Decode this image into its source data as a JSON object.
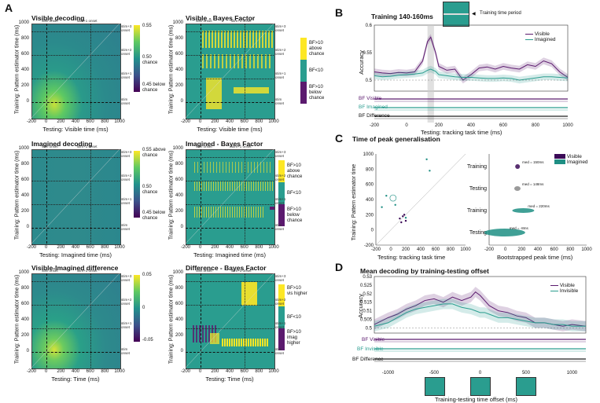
{
  "panels": {
    "A": {
      "label": "A"
    },
    "B": {
      "label": "B"
    },
    "C": {
      "label": "C"
    },
    "D": {
      "label": "D"
    }
  },
  "panelA": {
    "titles": [
      "Visible decoding",
      "Visible - Bayes Factor",
      "Imagined decoding",
      "Imagined - Bayes Factor",
      "Visible-Imagined difference",
      "Difference - Bayes Factor"
    ],
    "ylabel": "Training: Pattern estimator time (ms)",
    "xlabels": [
      "Testing: Visible time (ms)",
      "Testing: Visible time (ms)",
      "Testing: Imagined time (ms)",
      "Testing: Imagined time (ms)",
      "Testing: Time (ms)",
      "Testing: Time (ms)"
    ],
    "xticks": [
      "-200",
      "0",
      "200",
      "400",
      "600",
      "800",
      "1000"
    ],
    "yticks": [
      "1000",
      "800",
      "600",
      "400",
      "200",
      "0"
    ],
    "onset_top": [
      "stim onset",
      "stim+1 onset"
    ],
    "onset_side": [
      "stim+3 onset",
      "stim+2 onset",
      "stim+1 onset",
      "stim onset"
    ],
    "colorbar_vis": [
      "0.55",
      "0.50 chance",
      "0.45 below chance"
    ],
    "colorbar_img": [
      "0.55 above chance",
      "0.50 chance",
      "0.45 below chance"
    ],
    "colorbar_diff": [
      "0.05",
      "0",
      "-0.05"
    ],
    "bf_legend": [
      "BF>10 above chance",
      "BF<10",
      "BF>10 below chance"
    ],
    "bf_legend_diff": [
      "BF>10 vis higher",
      "BF<10",
      "BF>10 imag higher"
    ]
  },
  "panelB": {
    "title": "Training 140-160ms",
    "inset_label": "Training time period",
    "ylabel": "Accuracy",
    "xlabel": "Testing: tracking task time (ms)",
    "legend": [
      "Visible",
      "Imagined"
    ],
    "bf_rows": [
      "BF Visible",
      "BF Imagined",
      "BF Difference"
    ],
    "colors": {
      "visible": "#5b1a6e",
      "imagined": "#2a9d8f"
    },
    "chart_data": {
      "type": "line",
      "x": [
        -200,
        -150,
        -100,
        -50,
        0,
        50,
        100,
        130,
        150,
        180,
        200,
        250,
        300,
        350,
        400,
        450,
        500,
        550,
        600,
        650,
        700,
        750,
        800,
        850,
        900,
        950,
        1000
      ],
      "series": [
        {
          "name": "Visible",
          "values": [
            0.515,
            0.513,
            0.512,
            0.514,
            0.513,
            0.515,
            0.535,
            0.57,
            0.578,
            0.55,
            0.525,
            0.518,
            0.52,
            0.5,
            0.51,
            0.522,
            0.524,
            0.52,
            0.525,
            0.522,
            0.52,
            0.528,
            0.525,
            0.535,
            0.53,
            0.515,
            0.505
          ]
        },
        {
          "name": "Imagined",
          "values": [
            0.508,
            0.506,
            0.507,
            0.509,
            0.51,
            0.511,
            0.513,
            0.518,
            0.52,
            0.516,
            0.51,
            0.508,
            0.506,
            0.505,
            0.505,
            0.504,
            0.503,
            0.503,
            0.504,
            0.503,
            0.5,
            0.502,
            0.504,
            0.506,
            0.506,
            0.505,
            0.504
          ]
        }
      ],
      "xticks": [
        "-200",
        "0",
        "200",
        "400",
        "600",
        "800",
        "1000"
      ],
      "yticks": [
        "0.6",
        "0.55",
        "0.5"
      ],
      "ylim": [
        0.48,
        0.6
      ],
      "xlim": [
        -200,
        1000
      ]
    }
  },
  "panelC": {
    "title": "Time of peak generalisation",
    "left_ylabel": "Training: Pattern estimator time",
    "left_xlabel": "Testing: tracking task time",
    "left_xticks": [
      "-200",
      "0",
      "200",
      "400",
      "600",
      "800",
      "1000"
    ],
    "left_yticks": [
      "1000",
      "800",
      "600",
      "400",
      "200",
      "0",
      "-200"
    ],
    "right_xlabel": "Bootstrapped peak time (ms)",
    "right_xticks": [
      "-200",
      "0",
      "200",
      "400",
      "600",
      "800",
      "1000"
    ],
    "rows": [
      "Training",
      "Testing",
      "Training",
      "Testing"
    ],
    "med": [
      "med = 150ms",
      "med = 148ms",
      "med = 220ms",
      "med = -8ms"
    ],
    "legend": [
      "Visible",
      "Imagined"
    ]
  },
  "panelD": {
    "title": "Mean decoding by training-testing offset",
    "ylabel": "Accuracy",
    "xlabel": "Training-testing time offset (ms)",
    "legend": [
      "Visible",
      "Invisible"
    ],
    "bf_rows": [
      "BF Visible",
      "BF Invisible",
      "BF Difference"
    ],
    "chart_data": {
      "type": "line",
      "x": [
        -1150,
        -1000,
        -900,
        -800,
        -700,
        -600,
        -500,
        -400,
        -300,
        -200,
        -100,
        -50,
        0,
        50,
        100,
        200,
        300,
        400,
        500,
        600,
        700,
        800,
        900,
        1000,
        1150
      ],
      "series": [
        {
          "name": "Visible",
          "values": [
            0.502,
            0.506,
            0.508,
            0.511,
            0.513,
            0.516,
            0.517,
            0.515,
            0.518,
            0.516,
            0.518,
            0.521,
            0.519,
            0.516,
            0.513,
            0.51,
            0.509,
            0.507,
            0.506,
            0.503,
            0.503,
            0.502,
            0.501,
            0.502,
            0.501
          ]
        },
        {
          "name": "Invisible",
          "values": [
            0.501,
            0.503,
            0.506,
            0.509,
            0.511,
            0.512,
            0.513,
            0.514,
            0.514,
            0.512,
            0.511,
            0.51,
            0.509,
            0.509,
            0.508,
            0.506,
            0.506,
            0.505,
            0.504,
            0.503,
            0.503,
            0.502,
            0.502,
            0.501,
            0.501
          ]
        }
      ],
      "xticks": [
        "-1000",
        "-500",
        "0",
        "500",
        "1000"
      ],
      "yticks": [
        "0.53",
        "0.525",
        "0.52",
        "0.515",
        "0.51",
        "0.505",
        "0.5"
      ],
      "ylim": [
        0.497,
        0.53
      ],
      "xlim": [
        -1150,
        1150
      ]
    }
  }
}
